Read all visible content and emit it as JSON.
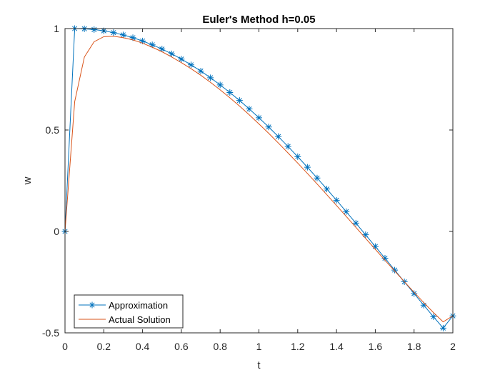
{
  "chart_data": {
    "type": "line",
    "title": "Euler's Method h=0.05",
    "xlabel": "t",
    "ylabel": "w",
    "xlim": [
      0,
      2
    ],
    "ylim": [
      -0.5,
      1
    ],
    "xticks": [
      0,
      0.2,
      0.4,
      0.6,
      0.8,
      1,
      1.2,
      1.4,
      1.6,
      1.8,
      2
    ],
    "xtick_labels": [
      "0",
      "0.2",
      "0.4",
      "0.6",
      "0.8",
      "1",
      "1.2",
      "1.4",
      "1.6",
      "1.8",
      "2"
    ],
    "yticks": [
      -0.5,
      0,
      0.5,
      1
    ],
    "ytick_labels": [
      "-0.5",
      "0",
      "0.5",
      "1"
    ],
    "grid": false,
    "legend_position": "bottom-left",
    "x": [
      0,
      0.05,
      0.1,
      0.15,
      0.2,
      0.25,
      0.3,
      0.35,
      0.4,
      0.45,
      0.5,
      0.55,
      0.6,
      0.65,
      0.7,
      0.75,
      0.8,
      0.85,
      0.9,
      0.95,
      1,
      1.05,
      1.1,
      1.15,
      1.2,
      1.25,
      1.3,
      1.35,
      1.4,
      1.45,
      1.5,
      1.55,
      1.6,
      1.65,
      1.7,
      1.75,
      1.8,
      1.85,
      1.9,
      1.95,
      2
    ],
    "series": [
      {
        "name": "Approximation",
        "color": "#0072BD",
        "marker": "asterisk",
        "values": [
          0,
          1.0,
          0.9988,
          0.995,
          0.9888,
          0.98,
          0.9688,
          0.955,
          0.9388,
          0.9201,
          0.899,
          0.8755,
          0.8496,
          0.8212,
          0.7906,
          0.7576,
          0.7224,
          0.685,
          0.6455,
          0.6039,
          0.5604,
          0.5149,
          0.4677,
          0.4188,
          0.3684,
          0.3165,
          0.2633,
          0.209,
          0.1537,
          0.0976,
          0.0408,
          -0.0165,
          -0.0742,
          -0.1322,
          -0.1904,
          -0.2484,
          -0.3062,
          -0.3636,
          -0.4204,
          -0.4765,
          -0.4162
        ]
      },
      {
        "name": "Actual Solution",
        "color": "#D95319",
        "marker": "none",
        "values": [
          0,
          0.64,
          0.86,
          0.935,
          0.96,
          0.962,
          0.955,
          0.944,
          0.928,
          0.908,
          0.886,
          0.86,
          0.832,
          0.802,
          0.77,
          0.735,
          0.698,
          0.659,
          0.618,
          0.575,
          0.53,
          0.484,
          0.436,
          0.387,
          0.337,
          0.286,
          0.234,
          0.181,
          0.128,
          0.074,
          0.02,
          -0.034,
          -0.088,
          -0.142,
          -0.195,
          -0.248,
          -0.3,
          -0.351,
          -0.4,
          -0.446,
          -0.416
        ]
      }
    ]
  }
}
